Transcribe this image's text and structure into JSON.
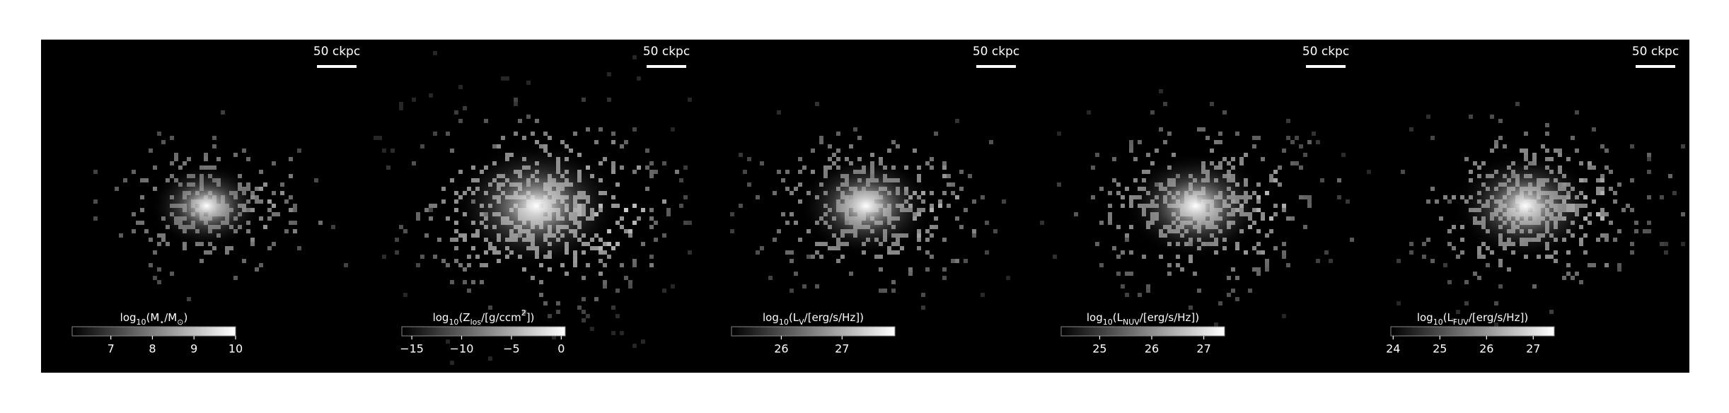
{
  "chart_data": [
    {
      "type": "image-map",
      "scalebar": "50 ckpc",
      "colorbar_label": [
        {
          "text": "log"
        },
        {
          "text": "10",
          "shift": "sub"
        },
        {
          "text": "(M"
        },
        {
          "text": "⋆",
          "shift": "sub"
        },
        {
          "text": "/M"
        },
        {
          "text": "⊙",
          "shift": "sub"
        },
        {
          "text": ")"
        }
      ],
      "clim": [
        6.07,
        10
      ],
      "cticks": [
        7,
        8,
        9,
        10
      ],
      "spread": 0.35
    },
    {
      "type": "image-map",
      "scalebar": "50 ckpc",
      "colorbar_label": [
        {
          "text": "log"
        },
        {
          "text": "10",
          "shift": "sub"
        },
        {
          "text": "(Z"
        },
        {
          "text": "los",
          "shift": "sub"
        },
        {
          "text": "/[g/ccm"
        },
        {
          "text": "2",
          "shift": "super"
        },
        {
          "text": "])"
        }
      ],
      "clim": [
        -16,
        0.4
      ],
      "cticks": [
        {
          "value": -15,
          "label": "−15"
        },
        {
          "value": -10,
          "label": "−10"
        },
        {
          "value": -5,
          "label": "−5"
        },
        0
      ],
      "spread": 1
    },
    {
      "type": "image-map",
      "scalebar": "50 ckpc",
      "colorbar_label": [
        {
          "text": "log"
        },
        {
          "text": "10",
          "shift": "sub"
        },
        {
          "text": "(L"
        },
        {
          "text": "V",
          "shift": "sub"
        },
        {
          "text": "/[erg/s/Hz])"
        }
      ],
      "clim": [
        25.18,
        27.87
      ],
      "cticks": [
        26,
        27
      ],
      "spread": 0.6
    },
    {
      "type": "image-map",
      "scalebar": "50 ckpc",
      "colorbar_label": [
        {
          "text": "log"
        },
        {
          "text": "10",
          "shift": "sub"
        },
        {
          "text": "(L"
        },
        {
          "text": "NUV",
          "shift": "sub"
        },
        {
          "text": "/[erg/s/Hz])"
        }
      ],
      "clim": [
        24.26,
        27.4
      ],
      "cticks": [
        25,
        26,
        27
      ],
      "spread": 0.7
    },
    {
      "type": "image-map",
      "scalebar": "50 ckpc",
      "colorbar_label": [
        {
          "text": "log"
        },
        {
          "text": "10",
          "shift": "sub"
        },
        {
          "text": "(L"
        },
        {
          "text": "FUV",
          "shift": "sub"
        },
        {
          "text": "/[erg/s/Hz])"
        }
      ],
      "clim": [
        23.95,
        27.45
      ],
      "cticks": [
        24,
        25,
        26,
        27
      ],
      "spread": 0.7
    }
  ]
}
